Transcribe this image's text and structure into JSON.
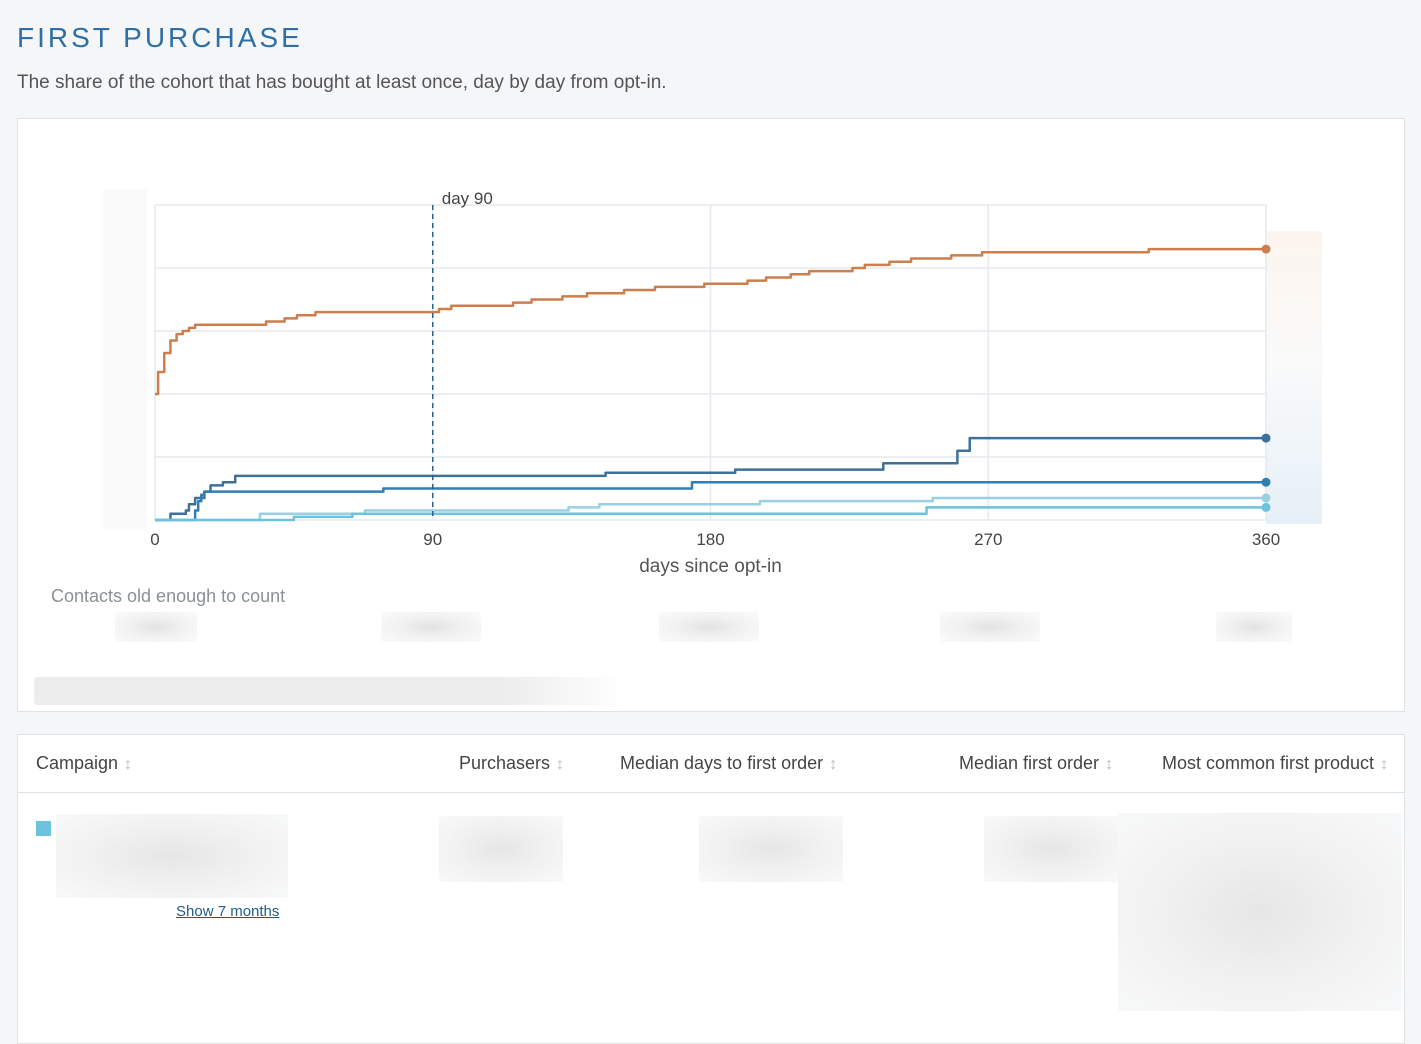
{
  "page": {
    "title": "FIRST PURCHASE",
    "subtitle": "The share of the cohort that has bought at least once, day by day from opt-in."
  },
  "chart_data": {
    "type": "line",
    "line_shape": "step",
    "xlabel": "days since opt-in",
    "ylabel": "",
    "xlim": [
      0,
      360
    ],
    "ylim": [
      0,
      100
    ],
    "x_ticks": [
      0,
      90,
      180,
      270,
      360
    ],
    "y_tick_values": [
      0,
      20,
      40,
      60,
      80,
      100
    ],
    "y_tick_labels_visible": false,
    "grid": true,
    "annotations": [
      {
        "x": 90,
        "label": "day 90",
        "style": "dashed"
      }
    ],
    "series": [
      {
        "color": "#cc7f4d",
        "points": [
          [
            0,
            40
          ],
          [
            1,
            47
          ],
          [
            3,
            53
          ],
          [
            5,
            57
          ],
          [
            7,
            59
          ],
          [
            9,
            60
          ],
          [
            11,
            61
          ],
          [
            13,
            62
          ],
          [
            34,
            62
          ],
          [
            36,
            63
          ],
          [
            42,
            64
          ],
          [
            46,
            65
          ],
          [
            52,
            66
          ],
          [
            92,
            67
          ],
          [
            96,
            68
          ],
          [
            116,
            69
          ],
          [
            122,
            70
          ],
          [
            132,
            71
          ],
          [
            140,
            72
          ],
          [
            152,
            73
          ],
          [
            162,
            74
          ],
          [
            178,
            75
          ],
          [
            192,
            76
          ],
          [
            198,
            77
          ],
          [
            206,
            78
          ],
          [
            212,
            79
          ],
          [
            226,
            80
          ],
          [
            230,
            81
          ],
          [
            238,
            82
          ],
          [
            245,
            83
          ],
          [
            258,
            84
          ],
          [
            268,
            85
          ],
          [
            300,
            85
          ],
          [
            322,
            86
          ],
          [
            360,
            86
          ]
        ]
      },
      {
        "color": "#3d7199",
        "points": [
          [
            0,
            0
          ],
          [
            4,
            0
          ],
          [
            5,
            2
          ],
          [
            10,
            3
          ],
          [
            11,
            5
          ],
          [
            13,
            7
          ],
          [
            16,
            9
          ],
          [
            18,
            11
          ],
          [
            22,
            12
          ],
          [
            26,
            14
          ],
          [
            143,
            14
          ],
          [
            146,
            15
          ],
          [
            186,
            15
          ],
          [
            188,
            16
          ],
          [
            223,
            16
          ],
          [
            236,
            18
          ],
          [
            258,
            18
          ],
          [
            260,
            22
          ],
          [
            264,
            26
          ],
          [
            360,
            26
          ]
        ]
      },
      {
        "color": "#2f7fb5",
        "points": [
          [
            0,
            0
          ],
          [
            12,
            0
          ],
          [
            13,
            3
          ],
          [
            14,
            6
          ],
          [
            15,
            8
          ],
          [
            16,
            9
          ],
          [
            73,
            9
          ],
          [
            74,
            10
          ],
          [
            173,
            10
          ],
          [
            174,
            12
          ],
          [
            360,
            12
          ]
        ]
      },
      {
        "color": "#9bcfe2",
        "points": [
          [
            0,
            0
          ],
          [
            32,
            0
          ],
          [
            34,
            2
          ],
          [
            66,
            2
          ],
          [
            68,
            3
          ],
          [
            132,
            3
          ],
          [
            134,
            4
          ],
          [
            142,
            4
          ],
          [
            144,
            5
          ],
          [
            194,
            5
          ],
          [
            196,
            6
          ],
          [
            250,
            6
          ],
          [
            252,
            7
          ],
          [
            360,
            7
          ]
        ]
      },
      {
        "color": "#6cc3de",
        "points": [
          [
            0,
            0
          ],
          [
            44,
            0
          ],
          [
            45,
            1
          ],
          [
            62,
            1
          ],
          [
            64,
            2
          ],
          [
            248,
            2
          ],
          [
            250,
            4
          ],
          [
            360,
            4
          ]
        ]
      }
    ]
  },
  "contacts": {
    "label": "Contacts old enough to count"
  },
  "table": {
    "headers": [
      {
        "label": "Campaign"
      },
      {
        "label": "Purchasers"
      },
      {
        "label": "Median days to first order"
      },
      {
        "label": "Median first order"
      },
      {
        "label": "Most common first product"
      }
    ],
    "sort_icon": "↕",
    "rows": [
      {
        "swatch_color": "#6cc3de",
        "show_link": "Show 7 months"
      }
    ]
  }
}
